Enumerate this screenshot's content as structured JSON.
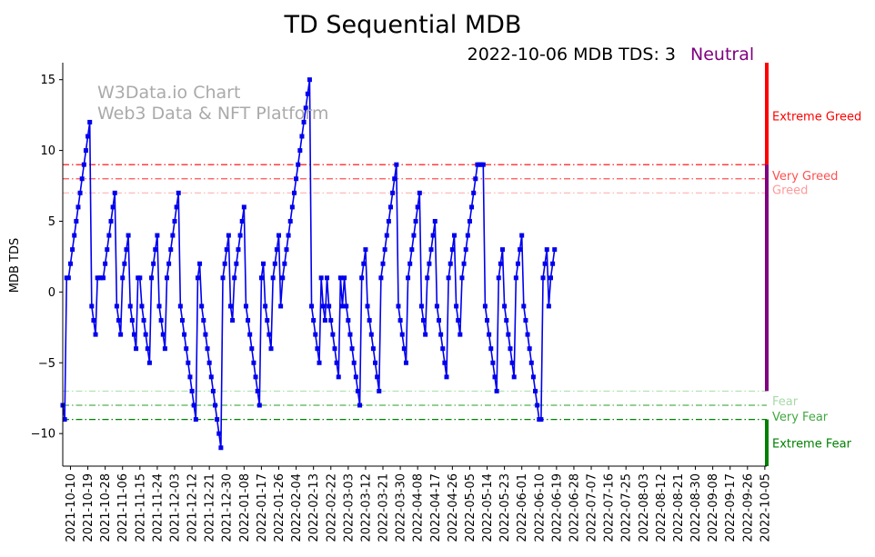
{
  "chart_data": {
    "type": "line",
    "title": "TD Sequential MDB",
    "status": {
      "text": "2022-10-06 MDB TDS: 3",
      "sentiment": "Neutral",
      "sentiment_color": "#800080"
    },
    "watermark": [
      "W3Data.io Chart",
      "Web3 Data & NFT Platform"
    ],
    "xlabel": "",
    "ylabel": "MDB TDS",
    "ylim": [
      -12.3,
      16.2
    ],
    "yticks": [
      15,
      10,
      5,
      0,
      -5,
      -10
    ],
    "x_start": "2021-10-06",
    "x_end": "2022-10-06",
    "xticks": [
      "2021-10-10",
      "2021-10-19",
      "2021-10-28",
      "2021-11-06",
      "2021-11-15",
      "2021-11-24",
      "2021-12-03",
      "2021-12-12",
      "2021-12-21",
      "2021-12-30",
      "2022-01-08",
      "2022-01-17",
      "2022-01-26",
      "2022-02-04",
      "2022-02-13",
      "2022-02-22",
      "2022-03-03",
      "2022-03-12",
      "2022-03-21",
      "2022-03-30",
      "2022-04-08",
      "2022-04-17",
      "2022-04-26",
      "2022-05-05",
      "2022-05-14",
      "2022-05-23",
      "2022-06-01",
      "2022-06-10",
      "2022-06-19",
      "2022-06-28",
      "2022-07-07",
      "2022-07-16",
      "2022-07-25",
      "2022-08-03",
      "2022-08-12",
      "2022-08-21",
      "2022-08-30",
      "2022-09-08",
      "2022-09-17",
      "2022-09-26",
      "2022-10-05"
    ],
    "series": [
      {
        "color": "#0000ee",
        "start_date": "2021-10-06",
        "values": [
          -8,
          -9,
          1,
          1,
          2,
          3,
          4,
          5,
          6,
          7,
          8,
          9,
          10,
          11,
          12,
          -1,
          -2,
          -3,
          1,
          1,
          1,
          1,
          2,
          3,
          4,
          5,
          6,
          7,
          -1,
          -2,
          -3,
          1,
          2,
          3,
          4,
          -1,
          -2,
          -3,
          -4,
          1,
          1,
          -1,
          -2,
          -3,
          -4,
          -5,
          1,
          2,
          3,
          4,
          -1,
          -2,
          -3,
          -4,
          1,
          2,
          3,
          4,
          5,
          6,
          7,
          -1,
          -2,
          -3,
          -4,
          -5,
          -6,
          -7,
          -8,
          -9,
          1,
          2,
          -1,
          -2,
          -3,
          -4,
          -5,
          -6,
          -7,
          -8,
          -9,
          -10,
          -11,
          1,
          2,
          3,
          4,
          -1,
          -2,
          1,
          2,
          3,
          4,
          5,
          6,
          -1,
          -2,
          -3,
          -4,
          -5,
          -6,
          -7,
          -8,
          1,
          2,
          -1,
          -2,
          -3,
          -4,
          1,
          2,
          3,
          4,
          -1,
          1,
          2,
          3,
          4,
          5,
          6,
          7,
          8,
          9,
          10,
          11,
          12,
          13,
          14,
          15,
          -1,
          -2,
          -3,
          -4,
          -5,
          1,
          -1,
          -2,
          1,
          -1,
          -2,
          -3,
          -4,
          -5,
          -6,
          1,
          -1,
          1,
          -1,
          -2,
          -3,
          -4,
          -5,
          -6,
          -7,
          -8,
          1,
          2,
          3,
          -1,
          -2,
          -3,
          -4,
          -5,
          -6,
          -7,
          1,
          2,
          3,
          4,
          5,
          6,
          7,
          8,
          9,
          -1,
          -2,
          -3,
          -4,
          -5,
          1,
          2,
          3,
          4,
          5,
          6,
          7,
          -1,
          -2,
          -3,
          1,
          2,
          3,
          4,
          5,
          -1,
          -2,
          -3,
          -4,
          -5,
          -6,
          1,
          2,
          3,
          4,
          -1,
          -2,
          -3,
          1,
          2,
          3,
          4,
          5,
          6,
          7,
          8,
          9,
          9,
          9,
          9,
          -1,
          -2,
          -3,
          -4,
          -5,
          -6,
          -7,
          1,
          2,
          3,
          -1,
          -2,
          -3,
          -4,
          -5,
          -6,
          1,
          2,
          3,
          4,
          -1,
          -2,
          -3,
          -4,
          -5,
          -6,
          -7,
          -8,
          -9,
          -9,
          1,
          2,
          3,
          -1,
          1,
          2,
          3
        ]
      }
    ],
    "zones": [
      {
        "label": "Extreme Greed",
        "value": 9,
        "line_color": "#ff0000",
        "text_color": "#ff0000",
        "bar_from": 9,
        "bar_to": 16.2,
        "bar_color": "#ff0000"
      },
      {
        "label": "Very Greed",
        "value": 8,
        "line_color": "#ff5050",
        "text_color": "#ff5050",
        "bar_from": null,
        "bar_to": null,
        "bar_color": ""
      },
      {
        "label": "Greed",
        "value": 7,
        "line_color": "#ffb0b0",
        "text_color": "#ff9a9a",
        "bar_from": null,
        "bar_to": null,
        "bar_color": ""
      },
      {
        "label": "Fear",
        "value": -7,
        "line_color": "#b0e0b0",
        "text_color": "#a8d8a8",
        "bar_from": null,
        "bar_to": null,
        "bar_color": ""
      },
      {
        "label": "Very Fear",
        "value": -8,
        "line_color": "#50b050",
        "text_color": "#40a840",
        "bar_from": null,
        "bar_to": null,
        "bar_color": ""
      },
      {
        "label": "Extreme Fear",
        "value": -9,
        "line_color": "#008000",
        "text_color": "#008000",
        "bar_from": -12.3,
        "bar_to": -9,
        "bar_color": "#008000"
      }
    ],
    "neutral_bar": {
      "from": -7,
      "to": 9,
      "color": "#800080"
    },
    "grid": false,
    "legend": "none"
  }
}
